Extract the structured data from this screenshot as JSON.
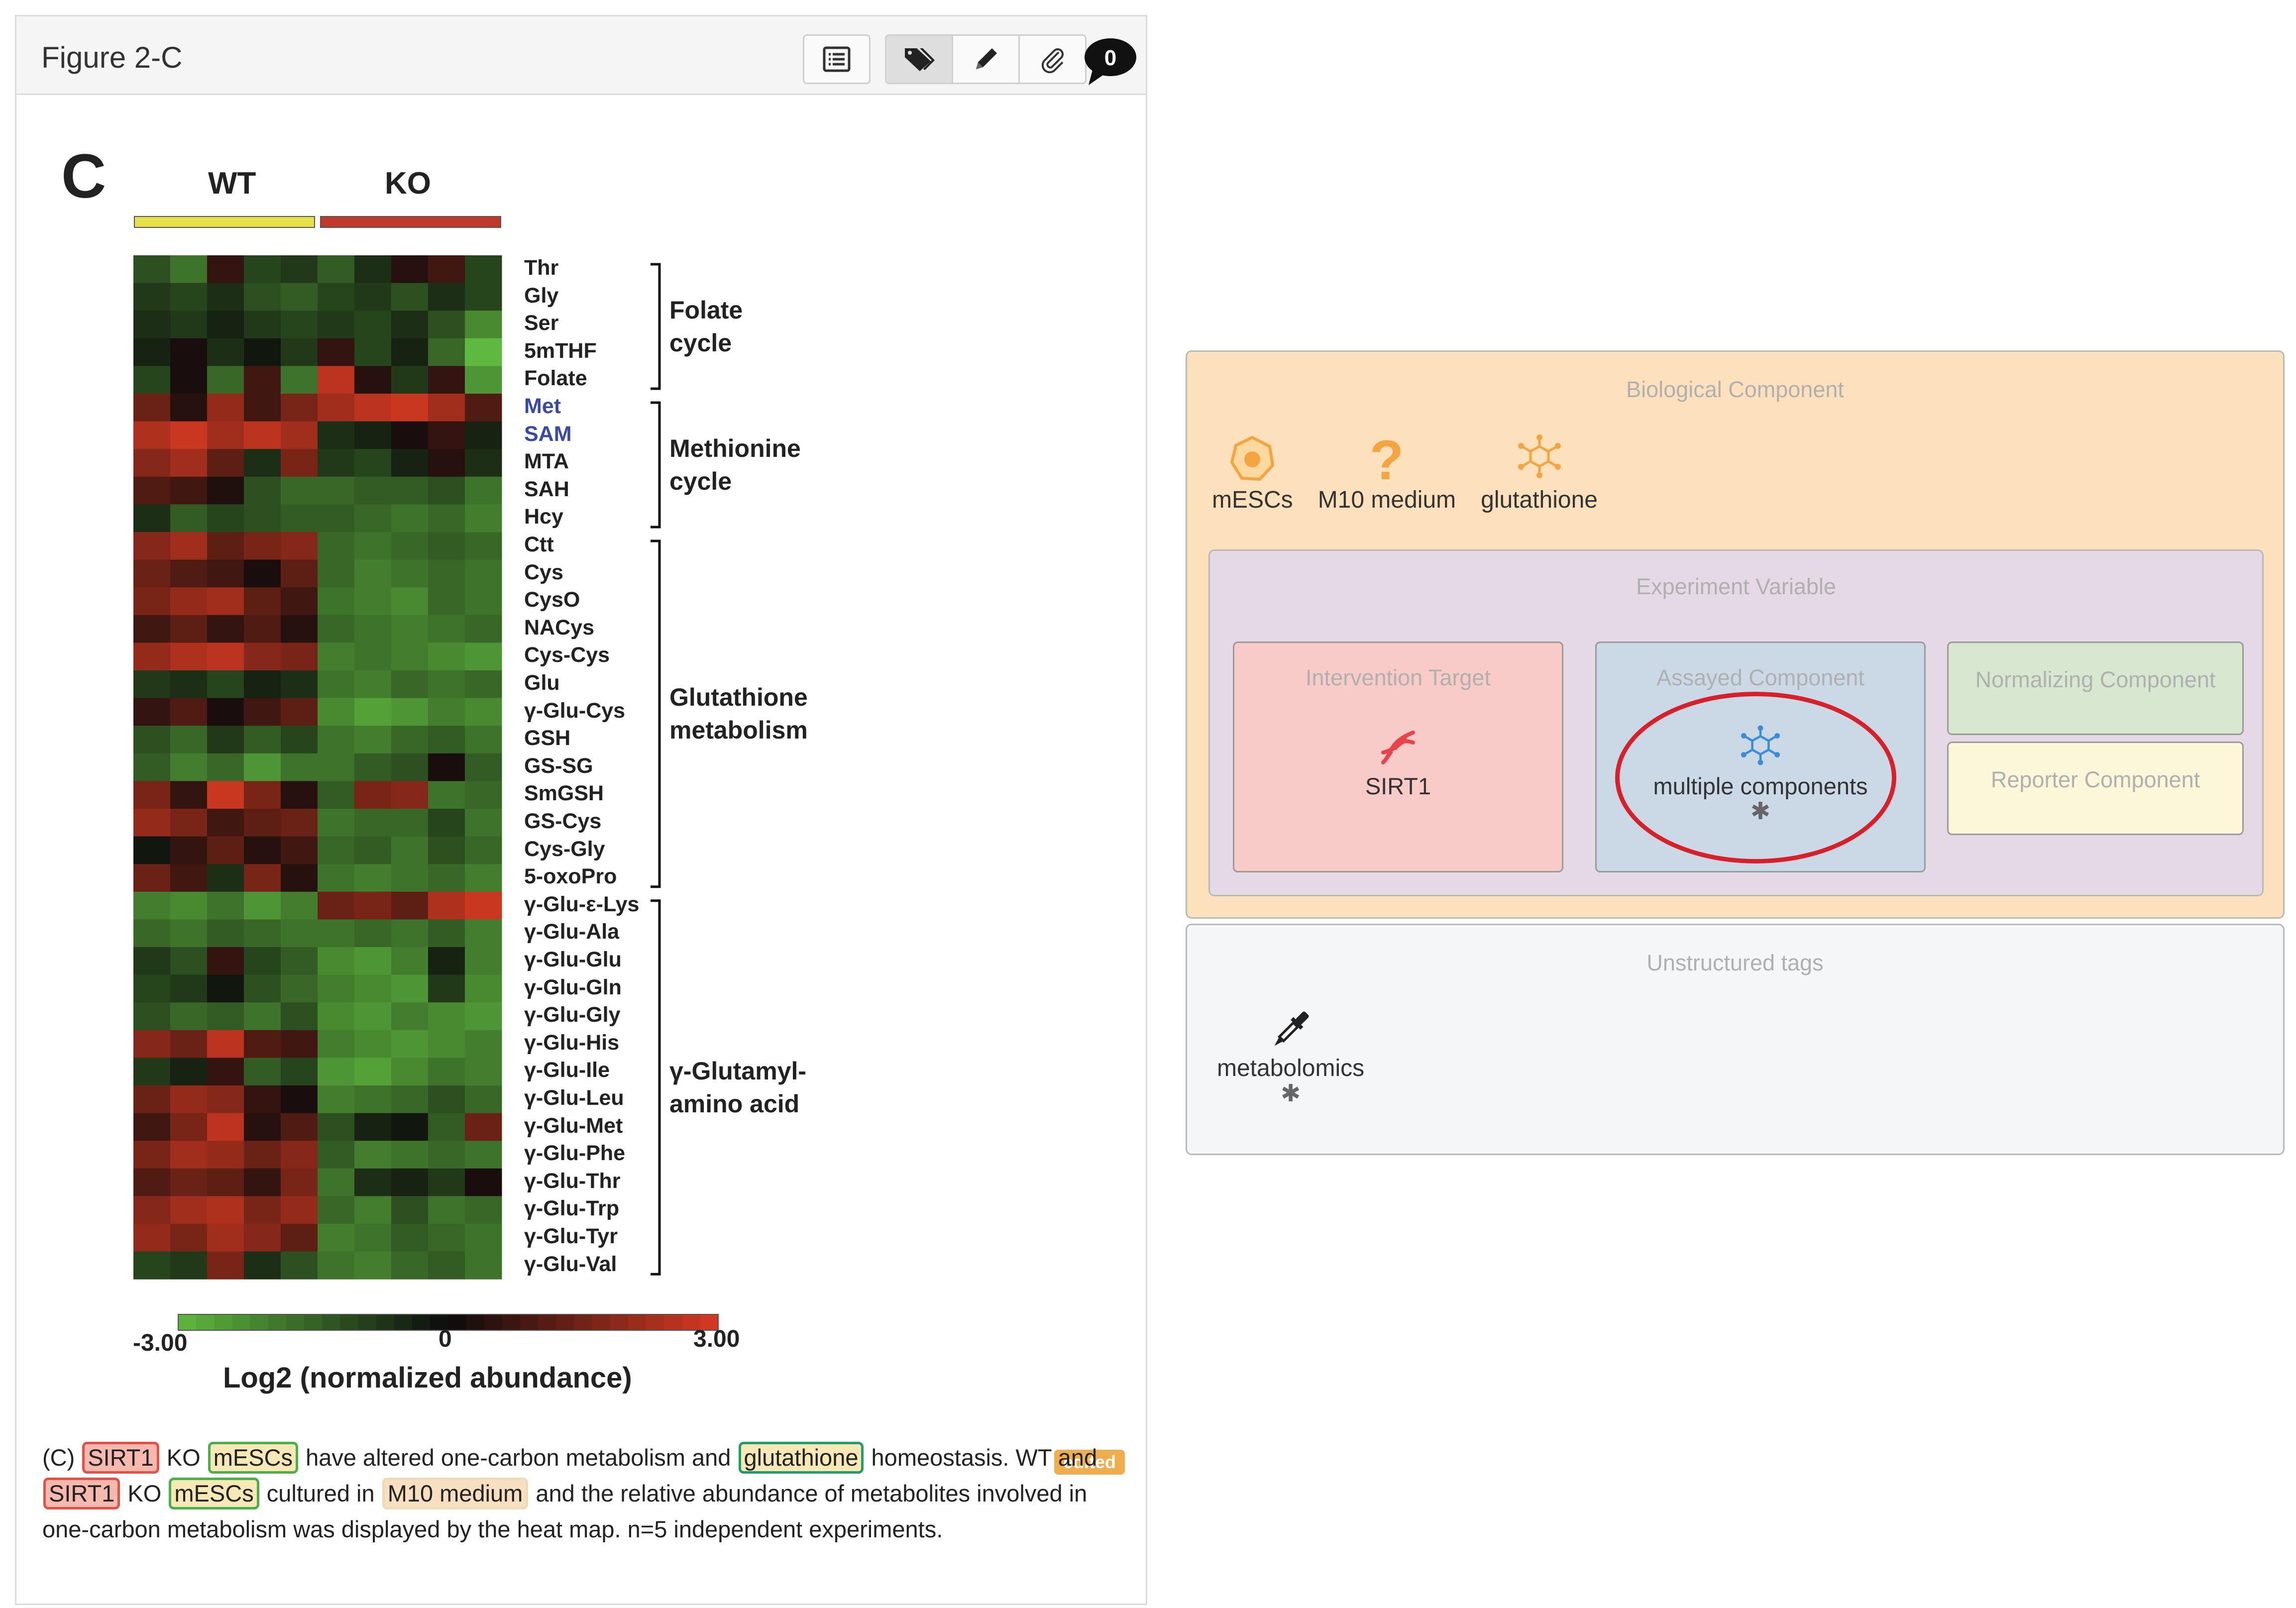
{
  "figure_panel": {
    "title": "Figure 2-C",
    "comment_count": "0",
    "toolbar_icons": [
      "list-icon",
      "tag-icon",
      "pencil-icon",
      "paperclip-icon",
      "comment-icon"
    ],
    "edited_badge": "edited"
  },
  "chart_data": {
    "type": "heatmap",
    "panel_letter": "C",
    "groups": [
      "WT",
      "KO"
    ],
    "group_colors": [
      "#e6e04a",
      "#c0392b"
    ],
    "columns_per_group": 5,
    "rows": [
      "Thr",
      "Gly",
      "Ser",
      "5mTHF",
      "Folate",
      "Met",
      "SAM",
      "MTA",
      "SAH",
      "Hcy",
      "Ctt",
      "Cys",
      "CysO",
      "NACys",
      "Cys-Cys",
      "Glu",
      "γ-Glu-Cys",
      "GSH",
      "GS-SG",
      "SmGSH",
      "GS-Cys",
      "Cys-Gly",
      "5-oxoPro",
      "γ-Glu-ε-Lys",
      "γ-Glu-Ala",
      "γ-Glu-Glu",
      "γ-Glu-Gln",
      "γ-Glu-Gly",
      "γ-Glu-His",
      "γ-Glu-Ile",
      "γ-Glu-Leu",
      "γ-Glu-Met",
      "γ-Glu-Phe",
      "γ-Glu-Thr",
      "γ-Glu-Trp",
      "γ-Glu-Tyr",
      "γ-Glu-Val"
    ],
    "highlighted_rows": [
      "Met",
      "SAM"
    ],
    "brackets": [
      {
        "label": "Folate\ncycle",
        "from": "Thr",
        "to": "Folate"
      },
      {
        "label": "Methionine\ncycle",
        "from": "Met",
        "to": "Hcy"
      },
      {
        "label": "Glutathione\nmetabolism",
        "from": "Ctt",
        "to": "5-oxoPro"
      },
      {
        "label": "γ-Glutamyl-\namino acid",
        "from": "γ-Glu-ε-Lys",
        "to": "γ-Glu-Val"
      }
    ],
    "values": [
      [
        -1.2,
        -1.8,
        0.6,
        -1.0,
        -0.8,
        -1.4,
        -0.6,
        0.4,
        0.8,
        -1.0
      ],
      [
        -0.8,
        -1.0,
        -0.6,
        -1.2,
        -1.4,
        -1.0,
        -0.8,
        -1.2,
        -0.6,
        -1.0
      ],
      [
        -0.6,
        -0.8,
        -0.4,
        -0.8,
        -1.0,
        -0.8,
        -1.0,
        -0.6,
        -1.2,
        -2.2
      ],
      [
        -0.4,
        0.2,
        -0.6,
        -0.2,
        -0.8,
        0.6,
        -1.0,
        -0.4,
        -1.6,
        -3.0
      ],
      [
        -1.0,
        0.2,
        -1.6,
        0.8,
        -1.8,
        2.6,
        0.4,
        -0.8,
        0.6,
        -2.4
      ],
      [
        1.4,
        0.4,
        2.0,
        0.8,
        1.6,
        2.2,
        2.6,
        2.8,
        2.2,
        1.0
      ],
      [
        2.4,
        2.8,
        2.2,
        2.6,
        2.2,
        -0.6,
        -0.4,
        0.2,
        0.6,
        -0.4
      ],
      [
        1.8,
        2.2,
        1.2,
        -0.6,
        1.6,
        -0.8,
        -1.0,
        -0.4,
        0.4,
        -0.6
      ],
      [
        1.0,
        0.8,
        0.3,
        -1.2,
        -1.6,
        -1.6,
        -1.4,
        -1.4,
        -1.2,
        -1.8
      ],
      [
        -0.6,
        -1.4,
        -1.0,
        -1.2,
        -1.4,
        -1.4,
        -1.6,
        -1.8,
        -1.6,
        -2.0
      ],
      [
        1.8,
        2.2,
        1.2,
        1.6,
        1.8,
        -1.6,
        -1.8,
        -1.6,
        -1.4,
        -1.6
      ],
      [
        1.4,
        1.0,
        0.8,
        0.2,
        1.2,
        -1.6,
        -2.0,
        -1.8,
        -1.6,
        -1.8
      ],
      [
        1.6,
        2.0,
        2.2,
        1.2,
        0.8,
        -1.8,
        -2.0,
        -2.2,
        -1.6,
        -1.8
      ],
      [
        0.8,
        1.2,
        0.6,
        1.0,
        0.4,
        -1.6,
        -1.8,
        -2.0,
        -1.8,
        -1.6
      ],
      [
        2.0,
        2.4,
        2.6,
        1.8,
        1.6,
        -2.0,
        -1.8,
        -2.0,
        -2.2,
        -2.4
      ],
      [
        -0.8,
        -0.6,
        -1.0,
        -0.4,
        -0.6,
        -1.8,
        -2.0,
        -1.6,
        -1.8,
        -1.6
      ],
      [
        0.6,
        1.0,
        0.2,
        0.8,
        1.2,
        -2.2,
        -2.6,
        -2.4,
        -2.0,
        -2.2
      ],
      [
        -1.2,
        -1.6,
        -0.8,
        -1.4,
        -1.0,
        -1.8,
        -2.0,
        -1.6,
        -1.4,
        -1.8
      ],
      [
        -1.4,
        -2.0,
        -1.6,
        -2.4,
        -1.8,
        -1.8,
        -1.4,
        -1.2,
        0.2,
        -1.4
      ],
      [
        1.6,
        0.6,
        2.8,
        1.6,
        0.4,
        -1.4,
        1.6,
        1.8,
        -1.8,
        -1.6
      ],
      [
        2.0,
        1.6,
        0.8,
        1.2,
        1.4,
        -1.8,
        -1.6,
        -1.6,
        -1.0,
        -1.8
      ],
      [
        -0.2,
        0.6,
        1.2,
        0.4,
        0.8,
        -1.6,
        -1.4,
        -1.8,
        -1.2,
        -1.6
      ],
      [
        1.4,
        0.8,
        -0.6,
        1.6,
        0.4,
        -1.8,
        -2.0,
        -1.8,
        -1.6,
        -2.0
      ],
      [
        -2.0,
        -2.2,
        -1.8,
        -2.4,
        -2.0,
        1.4,
        1.6,
        1.2,
        2.4,
        2.8
      ],
      [
        -1.6,
        -1.8,
        -1.4,
        -1.6,
        -1.8,
        -1.8,
        -1.6,
        -1.8,
        -1.4,
        -2.0
      ],
      [
        -0.8,
        -1.2,
        0.6,
        -1.0,
        -1.4,
        -2.2,
        -2.4,
        -2.0,
        -0.4,
        -2.0
      ],
      [
        -1.0,
        -0.8,
        -0.2,
        -1.2,
        -1.6,
        -2.0,
        -2.2,
        -2.4,
        -0.8,
        -2.2
      ],
      [
        -1.2,
        -1.6,
        -1.4,
        -1.8,
        -1.2,
        -2.2,
        -2.4,
        -2.0,
        -2.2,
        -2.4
      ],
      [
        1.8,
        1.4,
        2.6,
        1.0,
        0.8,
        -2.0,
        -2.2,
        -2.4,
        -2.2,
        -2.0
      ],
      [
        -0.8,
        -0.4,
        0.6,
        -1.4,
        -1.0,
        -2.4,
        -2.6,
        -2.2,
        -1.8,
        -2.0
      ],
      [
        1.4,
        2.0,
        1.8,
        0.6,
        0.2,
        -2.0,
        -1.8,
        -1.6,
        -1.2,
        -1.6
      ],
      [
        0.8,
        1.6,
        2.6,
        0.4,
        1.0,
        -1.2,
        -0.4,
        -0.2,
        -1.4,
        1.4
      ],
      [
        1.6,
        2.2,
        2.0,
        1.4,
        1.8,
        -1.4,
        -2.0,
        -1.8,
        -1.6,
        -1.8
      ],
      [
        1.0,
        1.4,
        1.2,
        0.6,
        1.6,
        -1.8,
        -0.6,
        -0.4,
        -0.8,
        0.2
      ],
      [
        1.8,
        2.2,
        2.4,
        1.6,
        2.0,
        -1.6,
        -2.0,
        -1.2,
        -1.8,
        -1.6
      ],
      [
        2.0,
        1.6,
        2.2,
        1.8,
        1.2,
        -2.0,
        -1.8,
        -1.4,
        -1.6,
        -1.8
      ],
      [
        -1.0,
        -0.8,
        1.6,
        -0.6,
        -1.2,
        -1.8,
        -2.0,
        -1.6,
        -1.4,
        -1.8
      ]
    ],
    "color_scale": {
      "min": -3.0,
      "mid": 0,
      "max": 3.0,
      "colors": [
        "#5fb83f",
        "#0b0b0b",
        "#d73a22"
      ]
    },
    "scale_labels": {
      "min": "-3.00",
      "mid": "0",
      "max": "3.00"
    },
    "scale_title": "Log2 (normalized abundance)"
  },
  "caption": {
    "seg1": "(C)",
    "tag_sirt1": "SIRT1",
    "seg2": "KO",
    "tag_mescs": "mESCs",
    "seg3": "have altered one-carbon metabolism and",
    "tag_glutathione": "glutathione",
    "seg4": "homeostasis. WT and",
    "seg5": "KO",
    "seg6": "cultured in",
    "tag_m10": "M10 medium",
    "seg7": "and the relative abundance of metabolites involved in one-carbon metabolism was displayed by the heat map. n=5 independent experiments."
  },
  "biological_component": {
    "title": "Biological Component",
    "items": [
      {
        "label": "mESCs",
        "icon": "cell-icon",
        "color": "#f5a442"
      },
      {
        "label": "M10 medium",
        "icon": "question-icon",
        "color": "#f5a442"
      },
      {
        "label": "glutathione",
        "icon": "molecule-icon",
        "color": "#f5a442"
      }
    ]
  },
  "experiment_variable": {
    "title": "Experiment Variable",
    "intervention_target": {
      "title": "Intervention Target",
      "item": "SIRT1",
      "icon": "dna-icon",
      "color": "#e8434a"
    },
    "assayed_component": {
      "title": "Assayed Component",
      "item": "multiple components",
      "icon": "molecule-icon",
      "color": "#3b8dd6",
      "asterisk": "✱"
    },
    "normalizing_component": {
      "title": "Normalizing Component"
    },
    "reporter_component": {
      "title": "Reporter Component"
    }
  },
  "unstructured_tags": {
    "title": "Unstructured tags",
    "items": [
      {
        "label": "metabolomics",
        "icon": "pipette-icon",
        "asterisk": "✱"
      }
    ]
  }
}
